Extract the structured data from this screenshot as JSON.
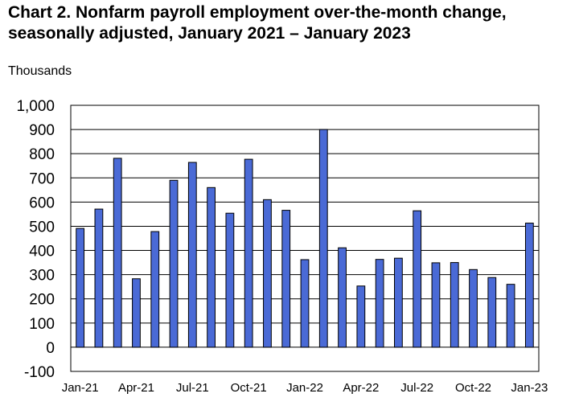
{
  "chart_data": {
    "type": "bar",
    "title_line1": "Chart 2. Nonfarm payroll employment over-the-month change,",
    "title_line2": "seasonally adjusted, January 2021 – January 2023",
    "unit_label": "Thousands",
    "categories": [
      "Jan-21",
      "Feb-21",
      "Mar-21",
      "Apr-21",
      "May-21",
      "Jun-21",
      "Jul-21",
      "Aug-21",
      "Sep-21",
      "Oct-21",
      "Nov-21",
      "Dec-21",
      "Jan-22",
      "Feb-22",
      "Mar-22",
      "Apr-22",
      "May-22",
      "Jun-22",
      "Jul-22",
      "Aug-22",
      "Sep-22",
      "Oct-22",
      "Nov-22",
      "Dec-22",
      "Jan-23"
    ],
    "values": [
      491,
      571,
      781,
      283,
      478,
      690,
      764,
      660,
      554,
      777,
      610,
      566,
      362,
      900,
      411,
      253,
      363,
      368,
      564,
      349,
      350,
      321,
      288,
      260,
      513
    ],
    "x_tick_labels": [
      "Jan-21",
      "Apr-21",
      "Jul-21",
      "Oct-21",
      "Jan-22",
      "Apr-22",
      "Jul-22",
      "Oct-22",
      "Jan-23"
    ],
    "x_tick_every": 3,
    "y_ticks": [
      -100,
      0,
      100,
      200,
      300,
      400,
      500,
      600,
      700,
      800,
      900,
      1000
    ],
    "y_tick_labels": [
      "-100",
      "0",
      "100",
      "200",
      "300",
      "400",
      "500",
      "600",
      "700",
      "800",
      "900",
      "1,000"
    ],
    "ylim": [
      -100,
      1000
    ],
    "grid": true,
    "bar_color": "#4a6ad6",
    "bar_edge_color": "#000000"
  }
}
